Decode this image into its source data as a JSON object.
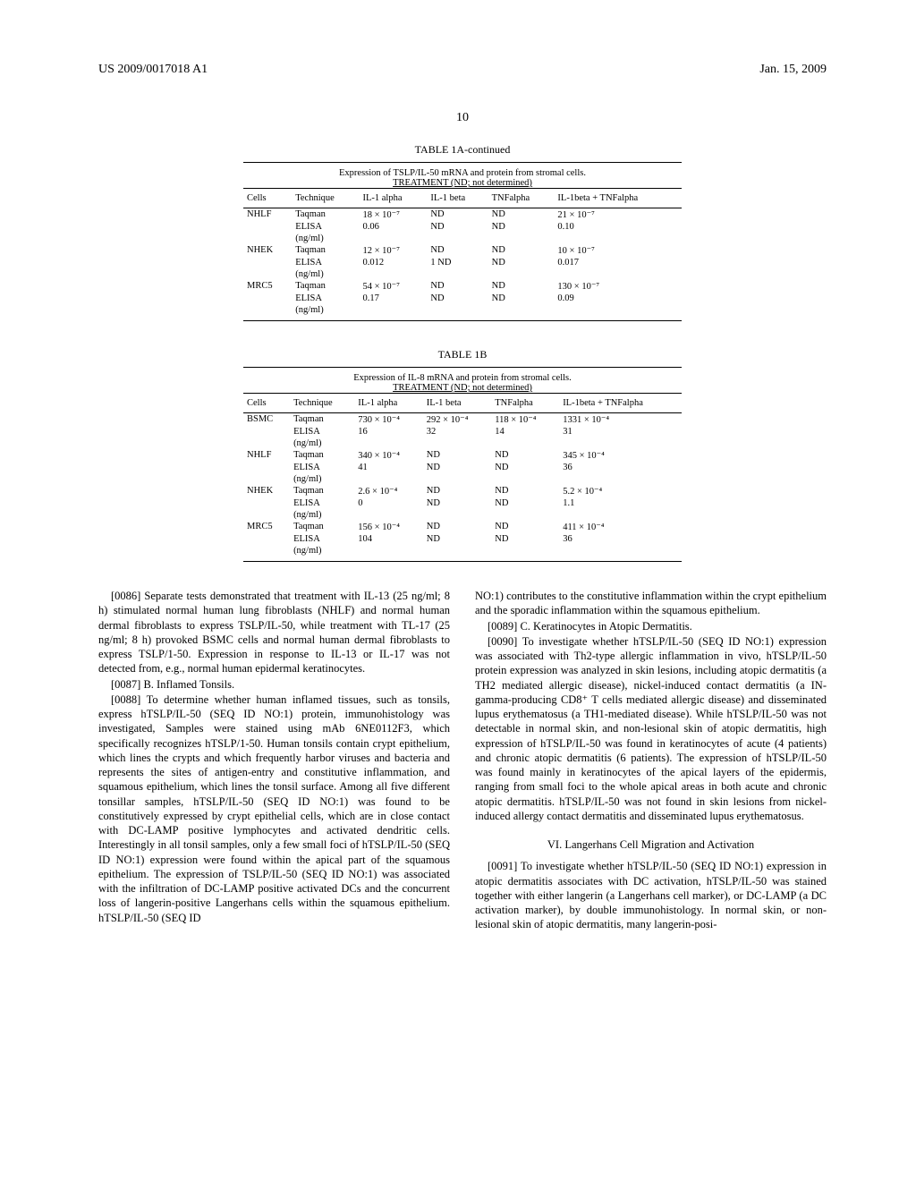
{
  "header": {
    "left": "US 2009/0017018 A1",
    "right": "Jan. 15, 2009"
  },
  "page_number": "10",
  "table1a": {
    "title": "TABLE 1A-continued",
    "caption1": "Expression of TSLP/IL-50 mRNA and protein from stromal cells.",
    "caption2": "TREATMENT (ND; not determined)",
    "columns": [
      "Cells",
      "Technique",
      "IL-1 alpha",
      "IL-1 beta",
      "TNFalpha",
      "IL-1beta + TNFalpha"
    ],
    "rows": [
      [
        "NHLF",
        "Taqman",
        "18 × 10⁻⁷",
        "ND",
        "ND",
        "21 × 10⁻⁷"
      ],
      [
        "",
        "ELISA",
        "0.06",
        "ND",
        "ND",
        "0.10"
      ],
      [
        "",
        "(ng/ml)",
        "",
        "",
        "",
        ""
      ],
      [
        "NHEK",
        "Taqman",
        "12 × 10⁻⁷",
        "ND",
        "ND",
        "10 × 10⁻⁷"
      ],
      [
        "",
        "ELISA",
        "0.012",
        "1 ND",
        "ND",
        "0.017"
      ],
      [
        "",
        "(ng/ml)",
        "",
        "",
        "",
        ""
      ],
      [
        "MRC5",
        "Taqman",
        "54 × 10⁻⁷",
        "ND",
        "ND",
        "130 × 10⁻⁷"
      ],
      [
        "",
        "ELISA",
        "0.17",
        "ND",
        "ND",
        "0.09"
      ],
      [
        "",
        "(ng/ml)",
        "",
        "",
        "",
        ""
      ]
    ]
  },
  "table1b": {
    "title": "TABLE 1B",
    "caption1": "Expression of IL-8 mRNA and protein from stromal cells.",
    "caption2": "TREATMENT (ND; not determined)",
    "columns": [
      "Cells",
      "Technique",
      "IL-1 alpha",
      "IL-1 beta",
      "TNFalpha",
      "IL-1beta + TNFalpha"
    ],
    "rows": [
      [
        "BSMC",
        "Taqman",
        "730 × 10⁻⁴",
        "292 × 10⁻⁴",
        "118 × 10⁻⁴",
        "1331 × 10⁻⁴"
      ],
      [
        "",
        "ELISA",
        "16",
        "32",
        "14",
        "31"
      ],
      [
        "",
        "(ng/ml)",
        "",
        "",
        "",
        ""
      ],
      [
        "NHLF",
        "Taqman",
        "340 × 10⁻⁴",
        "ND",
        "ND",
        "345 × 10⁻⁴"
      ],
      [
        "",
        "ELISA",
        "41",
        "ND",
        "ND",
        "36"
      ],
      [
        "",
        "(ng/ml)",
        "",
        "",
        "",
        ""
      ],
      [
        "NHEK",
        "Taqman",
        "2.6 × 10⁻⁴",
        "ND",
        "ND",
        "5.2 × 10⁻⁴"
      ],
      [
        "",
        "ELISA",
        "0",
        "ND",
        "ND",
        "1.1"
      ],
      [
        "",
        "(ng/ml)",
        "",
        "",
        "",
        ""
      ],
      [
        "MRC5",
        "Taqman",
        "156 × 10⁻⁴",
        "ND",
        "ND",
        "411 × 10⁻⁴"
      ],
      [
        "",
        "ELISA",
        "104",
        "ND",
        "ND",
        "36"
      ],
      [
        "",
        "(ng/ml)",
        "",
        "",
        "",
        ""
      ]
    ]
  },
  "paras": {
    "p86_label": "[0086]",
    "p86": " Separate tests demonstrated that treatment with IL-13 (25 ng/ml; 8 h) stimulated normal human lung fibroblasts (NHLF) and normal human dermal fibroblasts to express TSLP/IL-50, while treatment with TL-17 (25 ng/ml; 8 h) provoked BSMC cells and normal human dermal fibroblasts to express TSLP/1-50. Expression in response to IL-13 or IL-17 was not detected from, e.g., normal human epidermal keratinocytes.",
    "p87_label": "[0087]",
    "p87": " B. Inflamed Tonsils.",
    "p88_label": "[0088]",
    "p88": " To determine whether human inflamed tissues, such as tonsils, express hTSLP/IL-50 (SEQ ID NO:1) protein, immunohistology was investigated, Samples were stained using mAb 6NE0112F3, which specifically recognizes hTSLP/1-50. Human tonsils contain crypt epithelium, which lines the crypts and which frequently harbor viruses and bacteria and represents the sites of antigen-entry and constitutive inflammation, and squamous epithelium, which lines the tonsil surface. Among all five different tonsillar samples, hTSLP/IL-50 (SEQ ID NO:1) was found to be constitutively expressed by crypt epithelial cells, which are in close contact with DC-LAMP positive lymphocytes and activated dendritic cells. Interestingly in all tonsil samples, only a few small foci of hTSLP/IL-50 (SEQ ID NO:1) expression were found within the apical part of the squamous epithelium. The expression of TSLP/IL-50 (SEQ ID NO:1) was associated with the infiltration of DC-LAMP positive activated DCs and the concurrent loss of langerin-positive Langerhans cells within the squamous epithelium. hTSLP/IL-50 (SEQ ID ",
    "p88cont": "NO:1) contributes to the constitutive inflammation within the crypt epithelium and the sporadic inflammation within the squamous epithelium.",
    "p89_label": "[0089]",
    "p89": " C. Keratinocytes in Atopic Dermatitis.",
    "p90_label": "[0090]",
    "p90": " To investigate whether hTSLP/IL-50 (SEQ ID NO:1) expression was associated with Th2-type allergic inflammation in vivo, hTSLP/IL-50 protein expression was analyzed in skin lesions, including atopic dermatitis (a TH2 mediated allergic disease), nickel-induced contact dermatitis (a IN-gamma-producing CD8⁺ T cells mediated allergic disease) and disseminated lupus erythematosus (a TH1-mediated disease). While hTSLP/IL-50 was not detectable in normal skin, and non-lesional skin of atopic dermatitis, high expression of hTSLP/IL-50 was found in keratinocytes of acute (4 patients) and chronic atopic dermatitis (6 patients). The expression of hTSLP/IL-50 was found mainly in keratinocytes of the apical layers of the epidermis, ranging from small foci to the whole apical areas in both acute and chronic atopic dermatitis. hTSLP/IL-50 was not found in skin lesions from nickel-induced allergy contact dermatitis and disseminated lupus erythematosus.",
    "section6": "VI. Langerhans Cell Migration and Activation",
    "p91_label": "[0091]",
    "p91": " To investigate whether hTSLP/IL-50 (SEQ ID NO:1) expression in atopic dermatitis associates with DC activation, hTSLP/IL-50 was stained together with either langerin (a Langerhans cell marker), or DC-LAMP (a DC activation marker), by double immunohistology. In normal skin, or non-lesional skin of atopic dermatitis, many langerin-posi-"
  }
}
